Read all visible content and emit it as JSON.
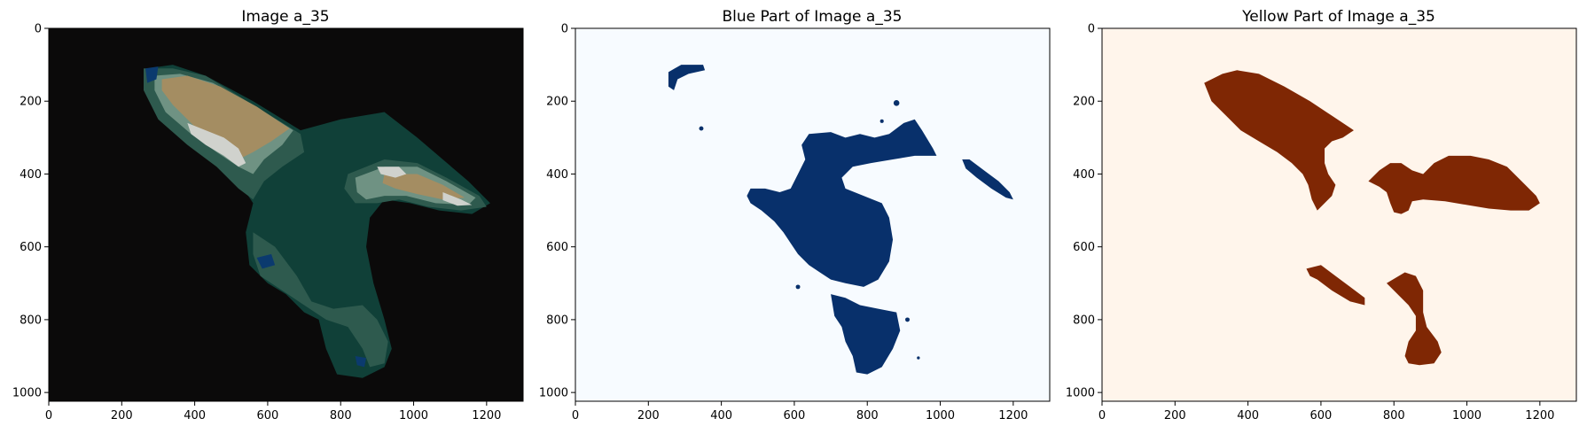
{
  "chart_data": [
    {
      "type": "heatmap",
      "title": "Image a_35",
      "xlim": [
        0,
        1300
      ],
      "ylim": [
        1024,
        0
      ],
      "xticks": [
        0,
        200,
        400,
        600,
        800,
        1000,
        1200
      ],
      "yticks": [
        0,
        200,
        400,
        600,
        800,
        1000
      ],
      "background_color": "#0b0a0a",
      "colors": {
        "teal": "#104038",
        "mid": "#2e5a4e",
        "light": "#6f9283",
        "tan": "#a48d62",
        "white": "#d0d2cd",
        "blue": "#0b3a6e"
      }
    },
    {
      "type": "heatmap",
      "title": "Blue Part of Image a_35",
      "xlim": [
        0,
        1300
      ],
      "ylim": [
        1024,
        0
      ],
      "xticks": [
        0,
        200,
        400,
        600,
        800,
        1000,
        1200
      ],
      "yticks": [
        0,
        200,
        400,
        600,
        800,
        1000
      ],
      "background_color": "#f7fbff",
      "mask_color": "#08306b"
    },
    {
      "type": "heatmap",
      "title": "Yellow Part of Image a_35",
      "xlim": [
        0,
        1300
      ],
      "ylim": [
        1024,
        0
      ],
      "xticks": [
        0,
        200,
        400,
        600,
        800,
        1000,
        1200
      ],
      "yticks": [
        0,
        200,
        400,
        600,
        800,
        1000
      ],
      "background_color": "#fff5eb",
      "mask_color": "#7f2704"
    }
  ]
}
